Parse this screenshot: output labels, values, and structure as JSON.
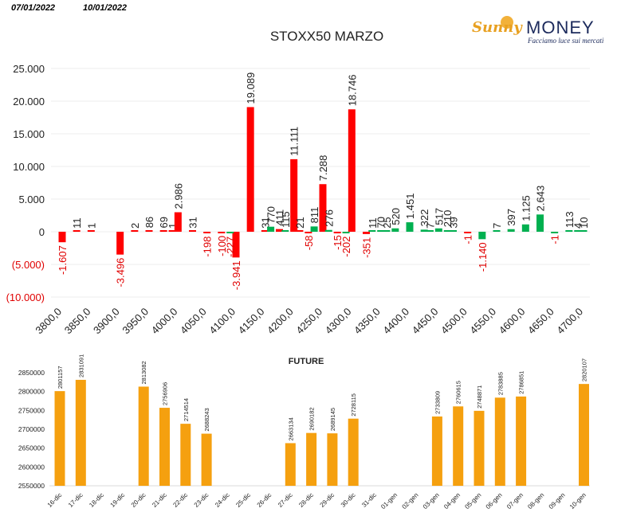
{
  "header": {
    "date_left": "07/01/2022",
    "date_right": "10/01/2022",
    "logo_sunny": "Sunny",
    "logo_money": "MONEY",
    "logo_tagline": "Facciamo luce sui mercati"
  },
  "colors": {
    "negative": "#ff0000",
    "positive": "#00b050",
    "future_bar": "#f5a00f",
    "grid": "#eeeeee",
    "negative_label": "#e00000"
  },
  "chart_data": [
    {
      "type": "bar",
      "title": "STOXX50 MARZO",
      "ylim": [
        -10000,
        25000
      ],
      "yticks": [
        25000,
        20000,
        15000,
        10000,
        5000,
        0,
        -5000,
        -10000
      ],
      "ytick_labels": [
        "25.000",
        "20.000",
        "15.000",
        "10.000",
        "5.000",
        "0",
        "(5.000)",
        "(10.000)"
      ],
      "xtick_labels": [
        "3800,0",
        "3850,0",
        "3900,0",
        "3950,0",
        "4000,0",
        "4050,0",
        "4100,0",
        "4150,0",
        "4200,0",
        "4250,0",
        "4300,0",
        "4350,0",
        "4400,0",
        "4450,0",
        "4500,0",
        "4550,0",
        "4600,0",
        "4650,0",
        "4700,0"
      ],
      "grid": true,
      "series": [
        {
          "color": "red",
          "points": [
            {
              "x": 3800,
              "value": -1607,
              "label": "-1.607"
            },
            {
              "x": 3825,
              "value": 11,
              "label": "11"
            },
            {
              "x": 3850,
              "value": 1,
              "label": "1"
            },
            {
              "x": 3900,
              "value": -3496,
              "label": "-3.496"
            },
            {
              "x": 3925,
              "value": 2,
              "label": "2"
            },
            {
              "x": 3950,
              "value": 86,
              "label": "86"
            },
            {
              "x": 3975,
              "value": 69,
              "label": "69"
            },
            {
              "x": 3990,
              "value": 1,
              "label": "1"
            },
            {
              "x": 4000,
              "value": 2986,
              "label": "2.986"
            },
            {
              "x": 4025,
              "value": 31,
              "label": "31"
            },
            {
              "x": 4050,
              "value": -198,
              "label": "-198"
            },
            {
              "x": 4075,
              "value": -100,
              "label": "-100"
            },
            {
              "x": 4100,
              "value": -3941,
              "label": "-3.941"
            },
            {
              "x": 4125,
              "value": 19089,
              "label": "19.089"
            },
            {
              "x": 4150,
              "value": 31,
              "label": "31"
            },
            {
              "x": 4175,
              "value": 411,
              "label": "411"
            },
            {
              "x": 4200,
              "value": 11111,
              "label": "11.111"
            },
            {
              "x": 4210,
              "value": 21,
              "label": "21"
            },
            {
              "x": 4225,
              "value": -58,
              "label": "-58"
            },
            {
              "x": 4250,
              "value": 7288,
              "label": "7.288"
            },
            {
              "x": 4275,
              "value": -15,
              "label": "-15"
            },
            {
              "x": 4300,
              "value": 18746,
              "label": "18.746"
            },
            {
              "x": 4325,
              "value": -351,
              "label": "-351"
            },
            {
              "x": 4500,
              "value": -1,
              "label": "-1"
            }
          ]
        },
        {
          "color": "green",
          "points": [
            {
              "x": 4090,
              "value": -227,
              "label": "-227"
            },
            {
              "x": 4160,
              "value": 770,
              "label": "770"
            },
            {
              "x": 4185,
              "value": 115,
              "label": "115"
            },
            {
              "x": 4235,
              "value": 811,
              "label": "811"
            },
            {
              "x": 4260,
              "value": 276,
              "label": "276"
            },
            {
              "x": 4290,
              "value": -202,
              "label": "-202"
            },
            {
              "x": 4335,
              "value": 11,
              "label": "11"
            },
            {
              "x": 4350,
              "value": 70,
              "label": "70"
            },
            {
              "x": 4360,
              "value": 25,
              "label": "25"
            },
            {
              "x": 4375,
              "value": 520,
              "label": "520"
            },
            {
              "x": 4400,
              "value": 1451,
              "label": "1.451"
            },
            {
              "x": 4425,
              "value": 322,
              "label": "322"
            },
            {
              "x": 4435,
              "value": 7,
              "label": "7"
            },
            {
              "x": 4450,
              "value": 517,
              "label": "517"
            },
            {
              "x": 4465,
              "value": 210,
              "label": "210"
            },
            {
              "x": 4475,
              "value": 39,
              "label": "39"
            },
            {
              "x": 4525,
              "value": -1140,
              "label": "-1.140"
            },
            {
              "x": 4550,
              "value": 7,
              "label": "7"
            },
            {
              "x": 4575,
              "value": 397,
              "label": "397"
            },
            {
              "x": 4600,
              "value": 1125,
              "label": "1.125"
            },
            {
              "x": 4625,
              "value": 2643,
              "label": "2.643"
            },
            {
              "x": 4650,
              "value": -1,
              "label": "-1"
            },
            {
              "x": 4675,
              "value": 113,
              "label": "113"
            },
            {
              "x": 4690,
              "value": 4,
              "label": "4"
            },
            {
              "x": 4700,
              "value": 10,
              "label": "10"
            }
          ]
        }
      ]
    },
    {
      "type": "bar",
      "title": "FUTURE",
      "ylim": [
        2550000,
        2850000
      ],
      "yticks": [
        2850000,
        2800000,
        2750000,
        2700000,
        2650000,
        2600000,
        2550000
      ],
      "ytick_labels": [
        "2850000",
        "2800000",
        "2750000",
        "2700000",
        "2650000",
        "2600000",
        "2550000"
      ],
      "categories": [
        "16-dic",
        "17-dic",
        "18-dic",
        "19-dic",
        "20-dic",
        "21-dic",
        "22-dic",
        "23-dic",
        "24-dic",
        "25-dic",
        "26-dic",
        "27-dic",
        "28-dic",
        "29-dic",
        "30-dic",
        "31-dic",
        "01-gen",
        "02-gen",
        "03-gen",
        "04-gen",
        "05-gen",
        "06-gen",
        "07-gen",
        "08-gen",
        "09-gen",
        "10-gen"
      ],
      "values": [
        2801157,
        2831091,
        null,
        null,
        2813082,
        2756906,
        2714514,
        2688243,
        null,
        null,
        null,
        2663134,
        2690182,
        2689145,
        2728115,
        null,
        null,
        null,
        2733809,
        2760615,
        2748871,
        2783885,
        2786851,
        null,
        null,
        2820107
      ],
      "grid": false
    }
  ]
}
